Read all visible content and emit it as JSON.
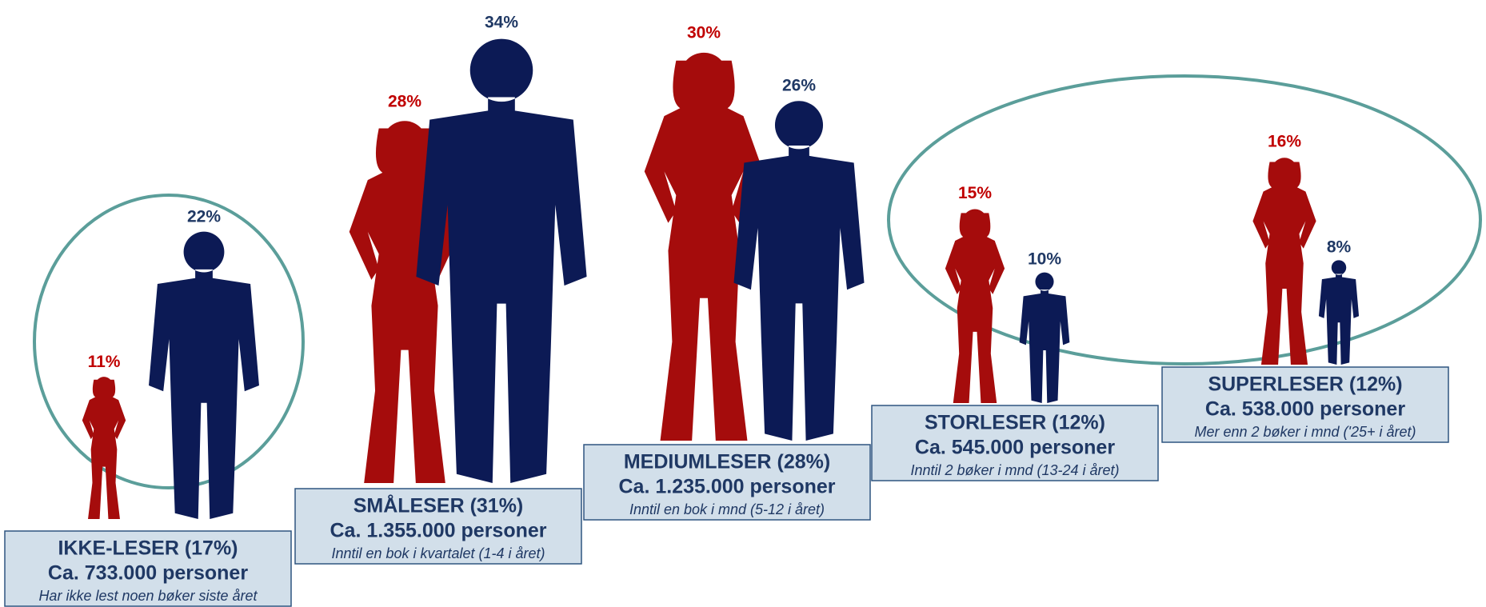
{
  "groups": [
    {
      "title": "IKKE-LESER (17%)",
      "people": "Ca. 733.000 personer",
      "note": "Har ikke lest noen bøker siste året",
      "women": {
        "value": 11,
        "label": "11%"
      },
      "men": {
        "value": 22,
        "label": "22%"
      }
    },
    {
      "title": "SMÅLESER (31%)",
      "people": "Ca. 1.355.000 personer",
      "note": "Inntil en bok i kvartalet (1-4 i året)",
      "women": {
        "value": 28,
        "label": "28%"
      },
      "men": {
        "value": 34,
        "label": "34%"
      }
    },
    {
      "title": "MEDIUMLESER (28%)",
      "people": "Ca. 1.235.000 personer",
      "note": "Inntil en bok i mnd (5-12 i året)",
      "women": {
        "value": 30,
        "label": "30%"
      },
      "men": {
        "value": 26,
        "label": "26%"
      }
    },
    {
      "title": "STORLESER (12%)",
      "people": "Ca. 545.000 personer",
      "note": "Inntil 2 bøker i mnd (13-24 i året)",
      "women": {
        "value": 15,
        "label": "15%"
      },
      "men": {
        "value": 10,
        "label": "10%"
      }
    },
    {
      "title": "SUPERLESER (12%)",
      "people": "Ca. 538.000 personer",
      "note": "Mer enn 2 bøker i mnd ('25+ i året)",
      "women": {
        "value": 16,
        "label": "16%"
      },
      "men": {
        "value": 8,
        "label": "8%"
      }
    }
  ]
}
